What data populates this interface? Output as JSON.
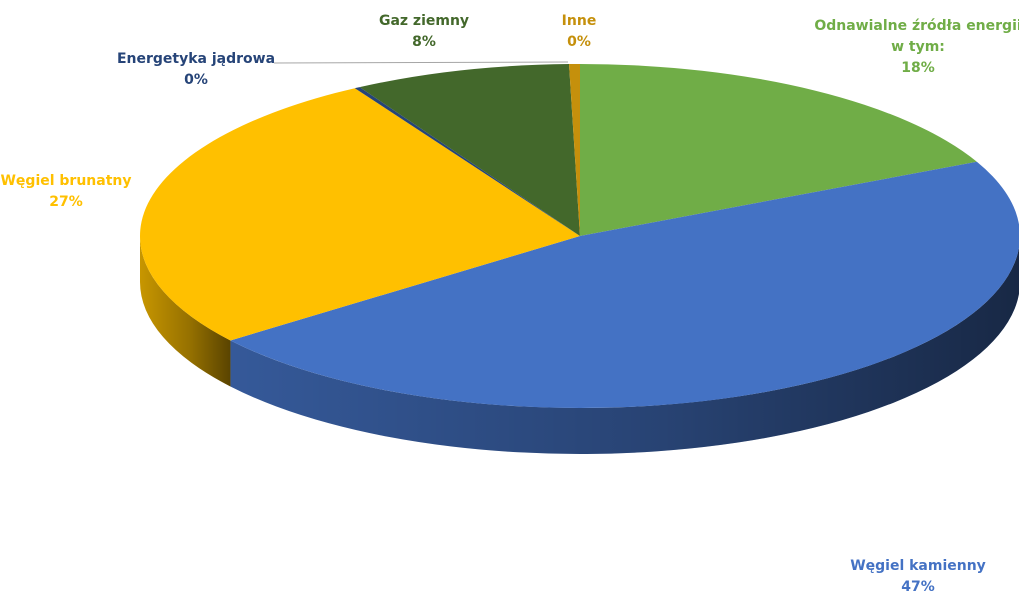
{
  "chart_data": {
    "type": "pie",
    "title": "",
    "slices": [
      {
        "label": "Odnawialne źródła energii w tym:",
        "label_lines": [
          "Odnawialne źródła energii",
          "w tym:"
        ],
        "value": 18,
        "value_label": "18%",
        "color": "#70AD47"
      },
      {
        "label": "Węgiel kamienny",
        "label_lines": [
          "Węgiel kamienny"
        ],
        "value": 47,
        "value_label": "47%",
        "color": "#4472C4"
      },
      {
        "label": "Węgiel brunatny",
        "label_lines": [
          "Węgiel brunatny"
        ],
        "value": 27,
        "value_label": "27%",
        "color": "#FFC000"
      },
      {
        "label": "Energetyka jądrowa",
        "label_lines": [
          "Energetyka jądrowa"
        ],
        "value": 0.2,
        "value_label": "0%",
        "color": "#264478"
      },
      {
        "label": "Gaz ziemny",
        "label_lines": [
          "Gaz ziemny"
        ],
        "value": 8,
        "value_label": "8%",
        "color": "#43682B"
      },
      {
        "label": "Inne",
        "label_lines": [
          "Inne"
        ],
        "value": 0.4,
        "value_label": "0%",
        "color": "#C5900C"
      }
    ],
    "style": "3d",
    "legend": "none",
    "start_angle": "top"
  }
}
